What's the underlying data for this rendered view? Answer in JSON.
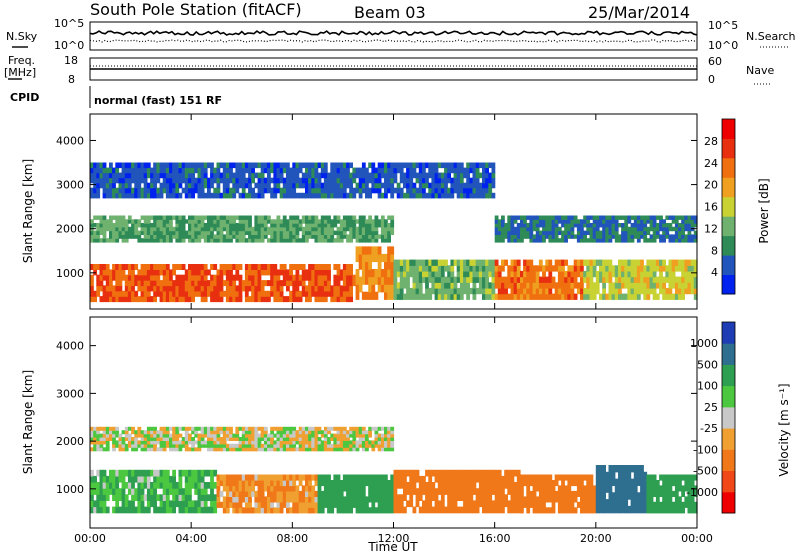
{
  "header": {
    "station": "South Pole Station (fitACF)",
    "beam": "Beam 03",
    "date": "25/Mar/2014"
  },
  "top_panels": {
    "nsky_label": "N.Sky",
    "nsearch_label": "N.Search",
    "noise_ticks": [
      "10^5",
      "10^0"
    ],
    "freq_label_1": "Freq.",
    "freq_label_2": "[MHz]",
    "freq_ticks": [
      "18",
      "8"
    ],
    "nave_label": "Nave",
    "nave_ticks": [
      "60",
      "0"
    ],
    "cpid_label": "CPID",
    "cpid_text": "normal (fast) 151 RF"
  },
  "colors": {
    "power": [
      "#0022ee",
      "#2255bb",
      "#2e8b57",
      "#6fb26f",
      "#c8d232",
      "#f0a020",
      "#f07010",
      "#e83010",
      "#ee0000"
    ],
    "velocity": [
      "#ee0000",
      "#f04818",
      "#f07818",
      "#f0a030",
      "#c8c8c8",
      "#4cc840",
      "#2e9e50",
      "#2e6e8e",
      "#1e3cb4"
    ]
  },
  "chart_data": [
    {
      "type": "heatmap",
      "title": "",
      "xlabel": "Time UT",
      "ylabel": "Slant Range [km]",
      "xlim": [
        "00:00",
        "24:00"
      ],
      "x_ticks": [
        "00:00",
        "04:00",
        "08:00",
        "12:00",
        "16:00",
        "20:00",
        "00:00"
      ],
      "ylim": [
        180,
        4600
      ],
      "y_ticks": [
        1000,
        2000,
        3000,
        4000
      ],
      "colorbar": {
        "label": "Power [dB]",
        "ticks": [
          4,
          8,
          12,
          16,
          20,
          24,
          28
        ],
        "range": [
          0,
          32
        ]
      },
      "regions": [
        {
          "x": [
            "00:00",
            "10:30"
          ],
          "range_km": [
            350,
            1200
          ],
          "value_dB": 28
        },
        {
          "x": [
            "10:30",
            "12:00"
          ],
          "range_km": [
            400,
            1600
          ],
          "value_dB": 24
        },
        {
          "x": [
            "12:00",
            "16:00"
          ],
          "range_km": [
            400,
            1300
          ],
          "value_dB": 14
        },
        {
          "x": [
            "16:00",
            "19:30"
          ],
          "range_km": [
            400,
            1300
          ],
          "value_dB": 26
        },
        {
          "x": [
            "19:30",
            "24:00"
          ],
          "range_km": [
            400,
            1300
          ],
          "value_dB": 18
        },
        {
          "x": [
            "00:00",
            "12:00"
          ],
          "range_km": [
            1700,
            2300
          ],
          "value_dB": 12
        },
        {
          "x": [
            "16:00",
            "24:00"
          ],
          "range_km": [
            1700,
            2300
          ],
          "value_dB": 8
        },
        {
          "x": [
            "00:00",
            "16:00"
          ],
          "range_km": [
            2700,
            3500
          ],
          "value_dB": 6
        }
      ]
    },
    {
      "type": "heatmap",
      "title": "",
      "xlabel": "Time UT",
      "ylabel": "Slant Range [km]",
      "xlim": [
        "00:00",
        "24:00"
      ],
      "x_ticks": [
        "00:00",
        "04:00",
        "08:00",
        "12:00",
        "16:00",
        "20:00",
        "00:00"
      ],
      "ylim": [
        180,
        4600
      ],
      "y_ticks": [
        1000,
        2000,
        3000,
        4000
      ],
      "colorbar": {
        "label": "Velocity [m s⁻¹]",
        "ticks": [
          1000,
          500,
          100,
          25,
          -25,
          -100,
          -500,
          -1000
        ]
      },
      "regions": [
        {
          "x": [
            "00:00",
            "05:00"
          ],
          "range_km": [
            500,
            1400
          ],
          "value_ms": 100
        },
        {
          "x": [
            "05:00",
            "09:00"
          ],
          "range_km": [
            500,
            1300
          ],
          "value_ms": -100
        },
        {
          "x": [
            "09:00",
            "12:00"
          ],
          "range_km": [
            500,
            1300
          ],
          "value_ms": 300
        },
        {
          "x": [
            "12:00",
            "17:00"
          ],
          "range_km": [
            500,
            1400
          ],
          "value_ms": -300
        },
        {
          "x": [
            "17:00",
            "20:00"
          ],
          "range_km": [
            500,
            1300
          ],
          "value_ms": -200
        },
        {
          "x": [
            "20:00",
            "22:00"
          ],
          "range_km": [
            500,
            1500
          ],
          "value_ms": 800
        },
        {
          "x": [
            "22:00",
            "24:00"
          ],
          "range_km": [
            500,
            1300
          ],
          "value_ms": 200
        },
        {
          "x": [
            "00:00",
            "12:00"
          ],
          "range_km": [
            1800,
            2300
          ],
          "value_ms": 0
        }
      ]
    }
  ]
}
